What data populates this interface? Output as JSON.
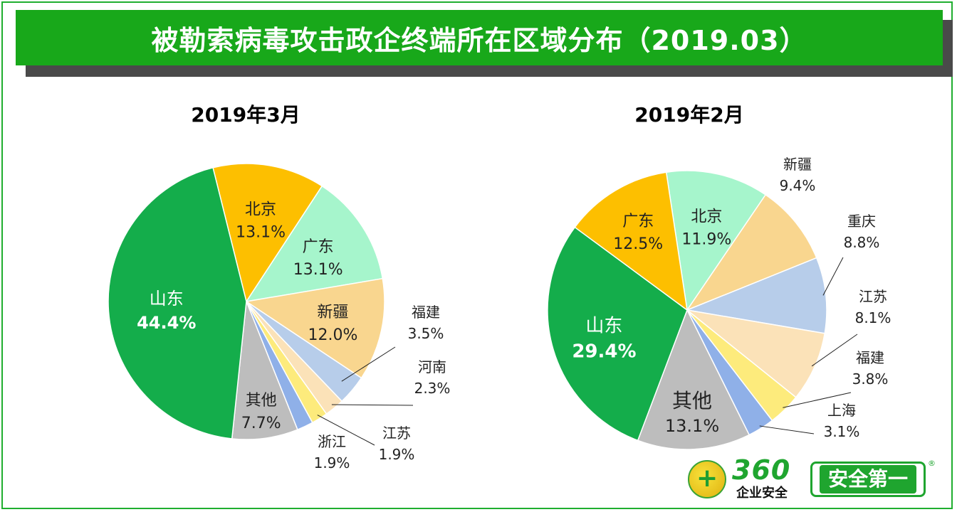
{
  "title": "被勒索病毒攻击政企终端所在区域分布（2019.03）",
  "logo": {
    "number": "360",
    "sub": "企业安全",
    "slogan": "安全第一",
    "plus": "+",
    "reg": "®"
  },
  "chart_data": [
    {
      "type": "pie",
      "title": "2019年3月",
      "slices": [
        {
          "label": "北京",
          "value": 13.1,
          "pct": "13.1%",
          "color": "#fdbf00"
        },
        {
          "label": "广东",
          "value": 13.1,
          "pct": "13.1%",
          "color": "#a6f5cc"
        },
        {
          "label": "新疆",
          "value": 12.0,
          "pct": "12.0%",
          "color": "#f9d68f"
        },
        {
          "label": "福建",
          "value": 3.5,
          "pct": "3.5%",
          "color": "#b7cdea"
        },
        {
          "label": "河南",
          "value": 2.3,
          "pct": "2.3%",
          "color": "#fbe2b8"
        },
        {
          "label": "江苏",
          "value": 1.9,
          "pct": "1.9%",
          "color": "#fdeb7c"
        },
        {
          "label": "浙江",
          "value": 1.9,
          "pct": "1.9%",
          "color": "#8fb0e8"
        },
        {
          "label": "其他",
          "value": 7.7,
          "pct": "7.7%",
          "color": "#bdbdbd"
        },
        {
          "label": "山东",
          "value": 44.4,
          "pct": "44.4%",
          "color": "#14ad4b"
        }
      ]
    },
    {
      "type": "pie",
      "title": "2019年2月",
      "slices": [
        {
          "label": "北京",
          "value": 11.9,
          "pct": "11.9%",
          "color": "#a6f5cc"
        },
        {
          "label": "新疆",
          "value": 9.4,
          "pct": "9.4%",
          "color": "#f9d68f"
        },
        {
          "label": "重庆",
          "value": 8.8,
          "pct": "8.8%",
          "color": "#b7cdea"
        },
        {
          "label": "江苏",
          "value": 8.1,
          "pct": "8.1%",
          "color": "#fbe2b8"
        },
        {
          "label": "福建",
          "value": 3.8,
          "pct": "3.8%",
          "color": "#fdeb7c"
        },
        {
          "label": "上海",
          "value": 3.1,
          "pct": "3.1%",
          "color": "#8fb0e8"
        },
        {
          "label": "其他",
          "value": 13.1,
          "pct": "13.1%",
          "color": "#bdbdbd"
        },
        {
          "label": "山东",
          "value": 29.4,
          "pct": "29.4%",
          "color": "#14ad4b"
        },
        {
          "label": "广东",
          "value": 12.5,
          "pct": "12.5%",
          "color": "#fdbf00"
        }
      ]
    }
  ]
}
